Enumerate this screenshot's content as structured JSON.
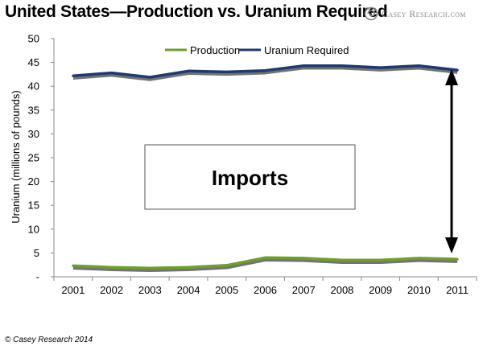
{
  "title": "United States—Production vs. Uranium Required",
  "brand": {
    "logo_icon": "swirl-logo-icon",
    "name": "Casey Research.com"
  },
  "copyright": "© Casey Research 2014",
  "annotation": {
    "label": "Imports",
    "arrow_icon": "double-headed-arrow-icon"
  },
  "colors": {
    "production": "#6e9f2e",
    "required": "#1f3a6e",
    "shadow": "#5a5a5a",
    "axis": "#888888"
  },
  "chart_data": {
    "type": "line",
    "categories": [
      "2001",
      "2002",
      "2003",
      "2004",
      "2005",
      "2006",
      "2007",
      "2008",
      "2009",
      "2010",
      "2011"
    ],
    "series": [
      {
        "name": "Production",
        "values": [
          2.3,
          2.0,
          1.8,
          2.0,
          2.4,
          4.0,
          3.9,
          3.5,
          3.5,
          3.9,
          3.7
        ]
      },
      {
        "name": "Uranium Required",
        "values": [
          42.2,
          42.8,
          41.9,
          43.2,
          43.0,
          43.3,
          44.3,
          44.3,
          43.9,
          44.3,
          43.4
        ]
      }
    ],
    "ylabel": "Uranium (millions of pounds)",
    "xlabel": "",
    "ylim": [
      0,
      50
    ],
    "yticks": [
      0,
      5,
      10,
      15,
      20,
      25,
      30,
      35,
      40,
      45,
      50
    ],
    "ytick_labels": [
      "-",
      "5",
      "10",
      "15",
      "20",
      "25",
      "30",
      "35",
      "40",
      "45",
      "50"
    ],
    "grid": false,
    "legend": "top-center"
  }
}
